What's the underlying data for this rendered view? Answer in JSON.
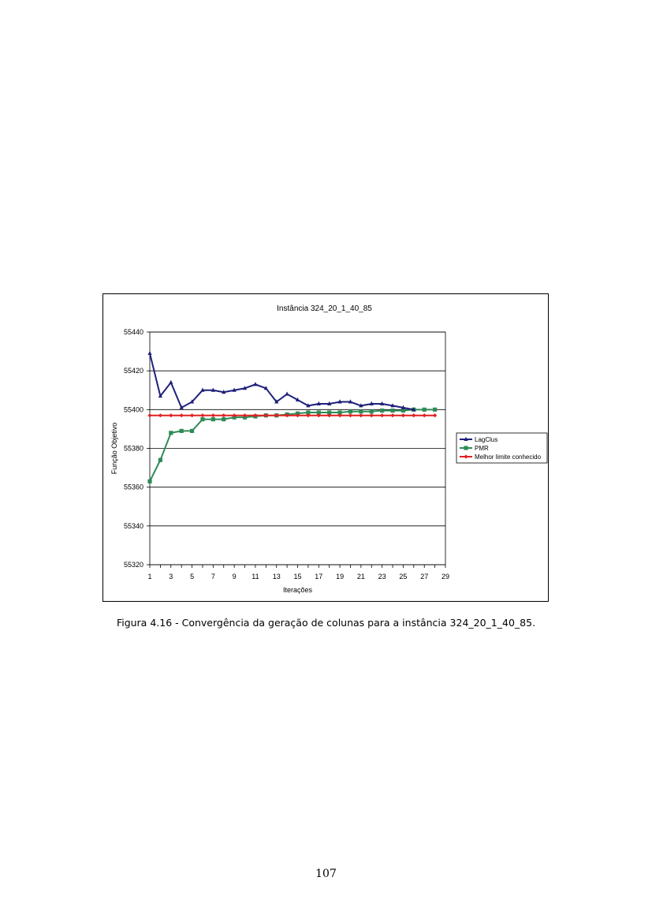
{
  "caption": "Figura 4.16 - Convergência da geração de colunas para a instância 324_20_1_40_85.",
  "page_number": "107",
  "chart_data": {
    "type": "line",
    "title": "Instância 324_20_1_40_85",
    "xlabel": "Iterações",
    "ylabel": "Função Objetivo",
    "xlim": [
      1,
      29
    ],
    "ylim": [
      55320,
      55440
    ],
    "x_ticks": [
      1,
      3,
      5,
      7,
      9,
      11,
      13,
      15,
      17,
      19,
      21,
      23,
      25,
      27,
      29
    ],
    "y_ticks": [
      55320,
      55340,
      55360,
      55380,
      55400,
      55420,
      55440
    ],
    "grid": "horizontal",
    "legend_position": "right",
    "series": [
      {
        "name": "LagClus",
        "color": "#1f1f7a",
        "marker": "triangle",
        "x": [
          1,
          2,
          3,
          4,
          5,
          6,
          7,
          8,
          9,
          10,
          11,
          12,
          13,
          14,
          15,
          16,
          17,
          18,
          19,
          20,
          21,
          22,
          23,
          24,
          25,
          26
        ],
        "y": [
          55429,
          55407,
          55414,
          55401,
          55404,
          55410,
          55410,
          55409,
          55410,
          55411,
          55413,
          55411,
          55404,
          55408,
          55405,
          55402,
          55403,
          55403,
          55404,
          55404,
          55402,
          55403,
          55403,
          55402,
          55401,
          55400
        ]
      },
      {
        "name": "PMR",
        "color": "#2e8b57",
        "marker": "square",
        "x": [
          1,
          2,
          3,
          4,
          5,
          6,
          7,
          8,
          9,
          10,
          11,
          12,
          13,
          14,
          15,
          16,
          17,
          18,
          19,
          20,
          21,
          22,
          23,
          24,
          25,
          26,
          27,
          28
        ],
        "y": [
          55363,
          55374,
          55388,
          55389,
          55389,
          55395,
          55395,
          55395,
          55396,
          55396,
          55396.5,
          55397,
          55397,
          55397.5,
          55398,
          55398.5,
          55398.5,
          55398.5,
          55398.5,
          55399,
          55399,
          55399,
          55399.5,
          55399.5,
          55399.5,
          55400,
          55400,
          55400
        ]
      },
      {
        "name": "Melhor limite conhecido",
        "color": "#e02020",
        "marker": "diamond",
        "x": [
          1,
          2,
          3,
          4,
          5,
          6,
          7,
          8,
          9,
          10,
          11,
          12,
          13,
          14,
          15,
          16,
          17,
          18,
          19,
          20,
          21,
          22,
          23,
          24,
          25,
          26,
          27,
          28
        ],
        "y": [
          55397,
          55397,
          55397,
          55397,
          55397,
          55397,
          55397,
          55397,
          55397,
          55397,
          55397,
          55397,
          55397,
          55397,
          55397,
          55397,
          55397,
          55397,
          55397,
          55397,
          55397,
          55397,
          55397,
          55397,
          55397,
          55397,
          55397,
          55397
        ]
      }
    ]
  }
}
